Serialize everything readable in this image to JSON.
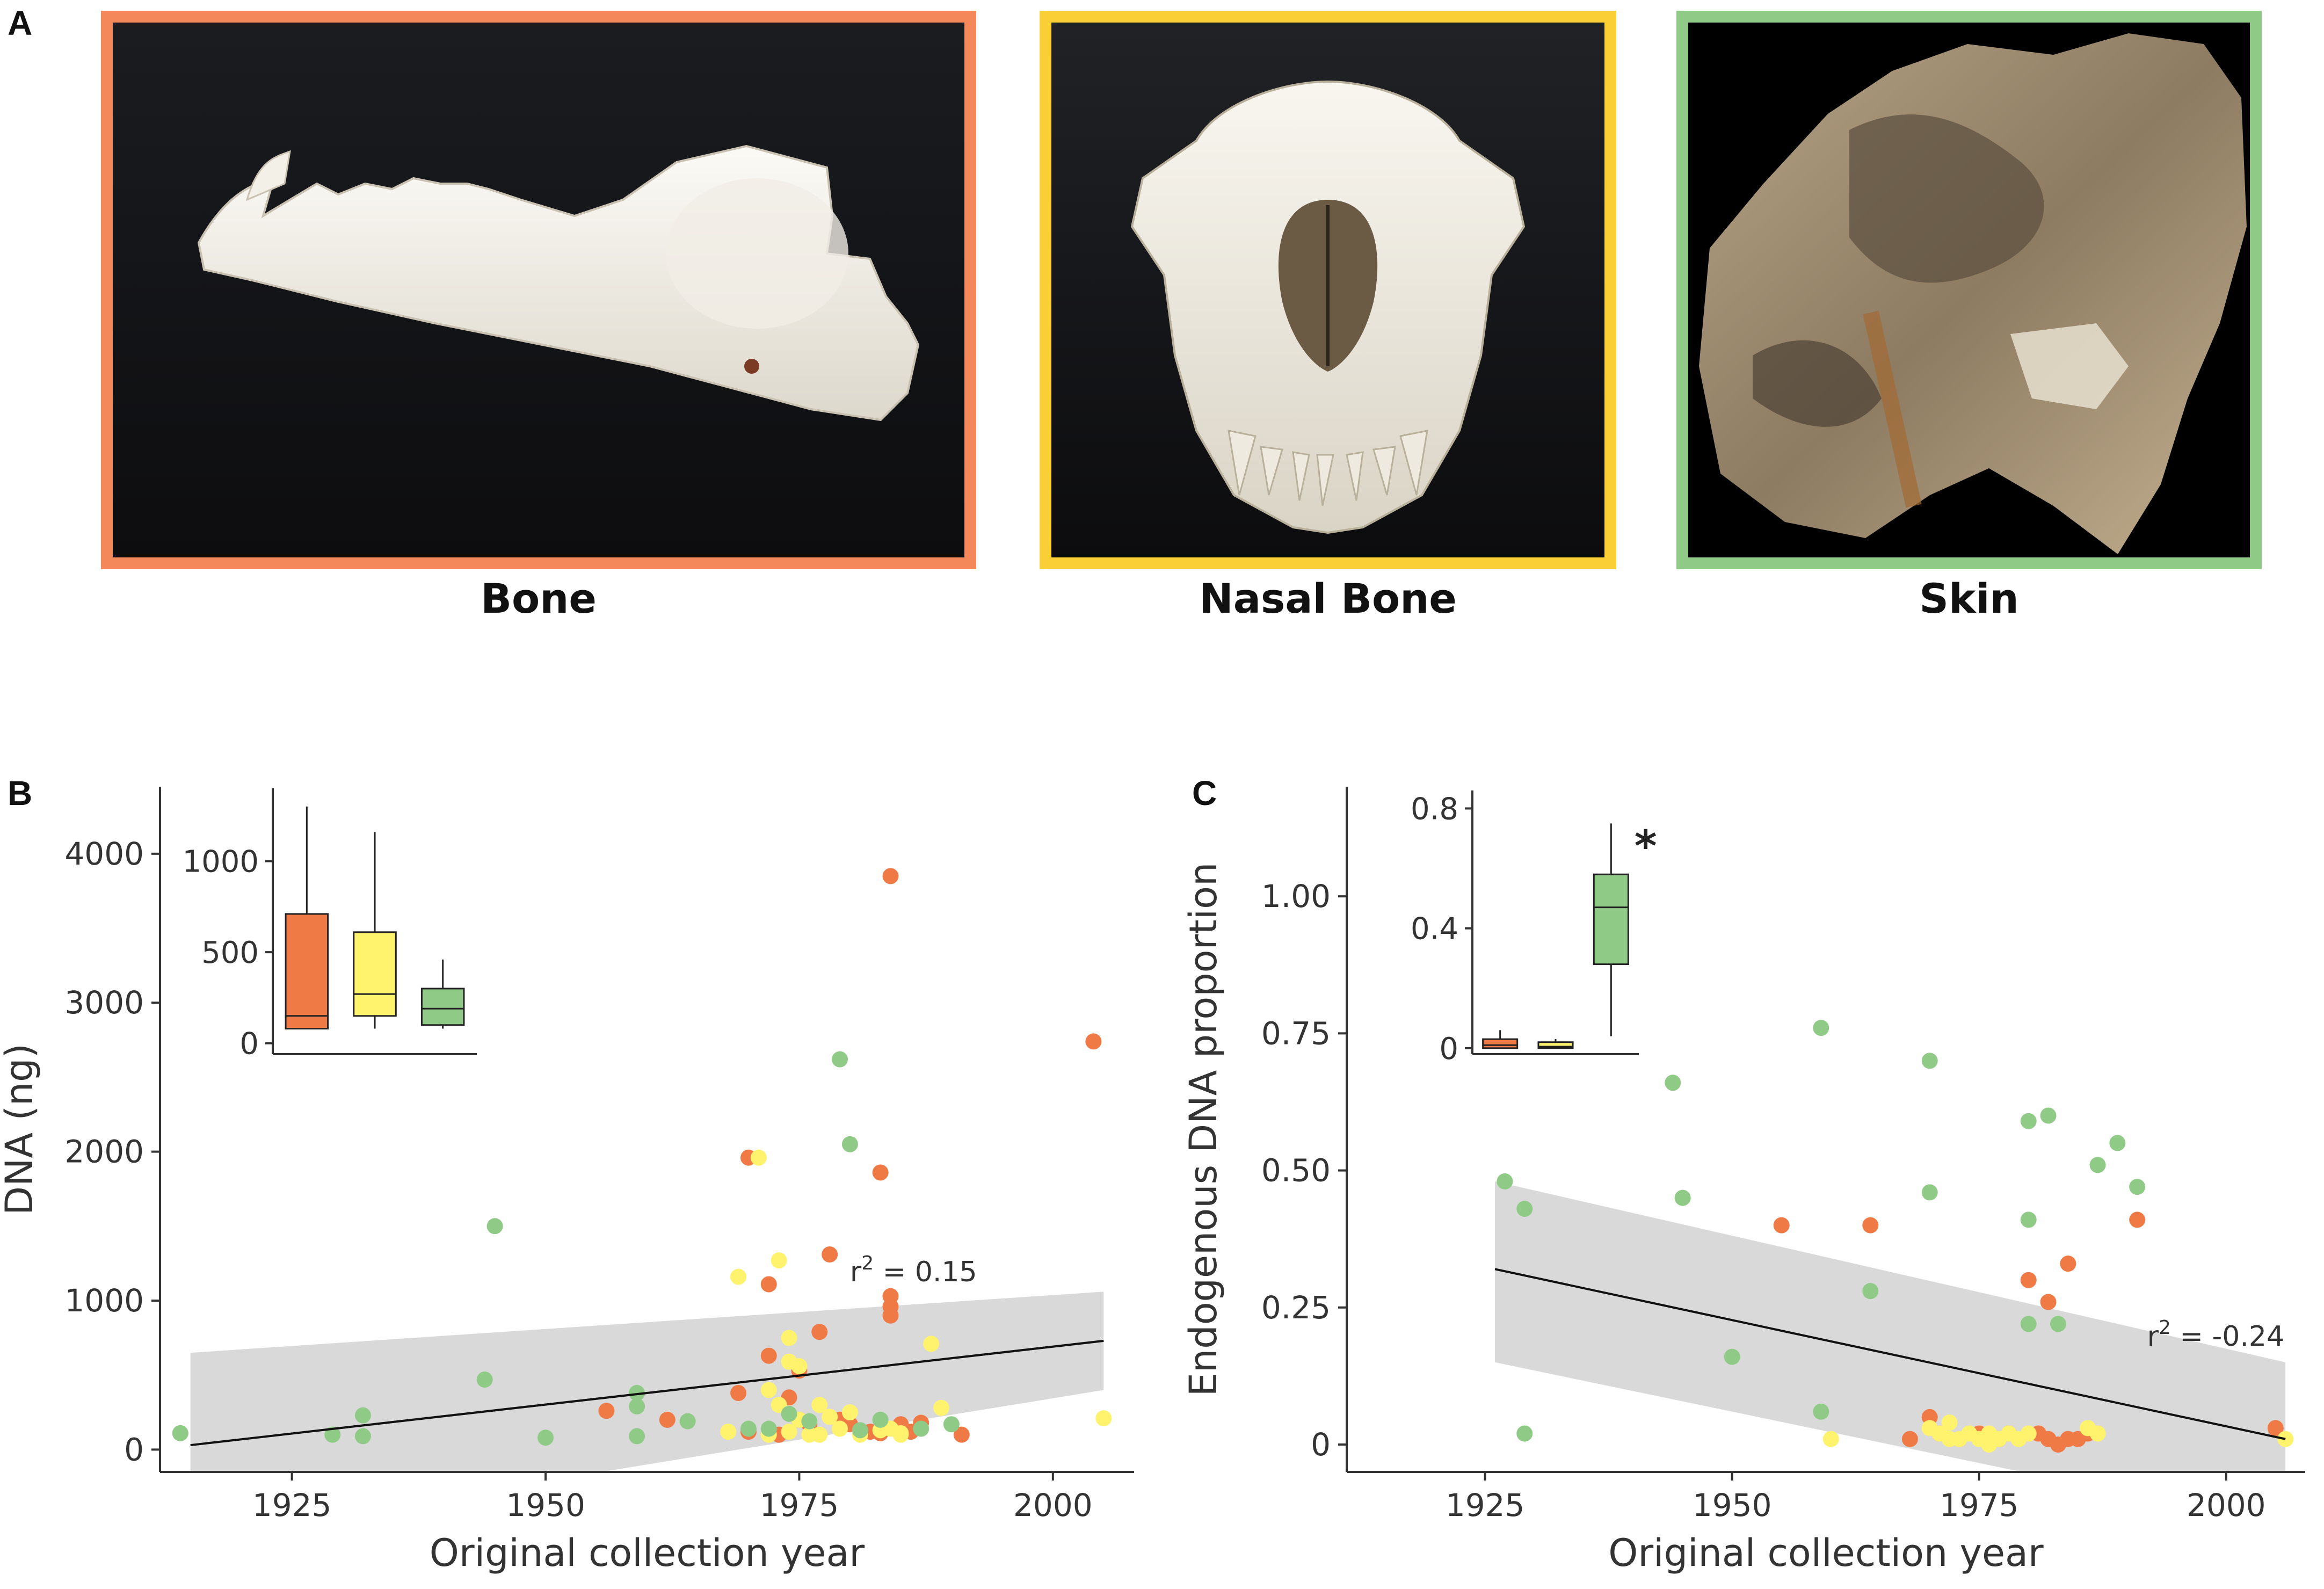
{
  "panels": {
    "a": {
      "letter": "A"
    },
    "b": {
      "letter": "B"
    },
    "c": {
      "letter": "C"
    }
  },
  "photos": [
    {
      "caption": "Bone",
      "frame_color": "#F4885A"
    },
    {
      "caption": "Nasal Bone",
      "frame_color": "#F9CF35"
    },
    {
      "caption": "Skin",
      "frame_color": "#8FCB86"
    }
  ],
  "colors": {
    "bone": "#F07A46",
    "nasal_bone": "#FFF36E",
    "skin": "#8FCB86",
    "ribbon": "#D9D9D9",
    "axis": "#333333"
  },
  "chart_data": [
    {
      "type": "scatter",
      "panel": "B",
      "title": "",
      "xlabel": "Original collection year",
      "ylabel": "DNA (ng)",
      "xlim": [
        1912,
        2008
      ],
      "ylim": [
        -150,
        4450
      ],
      "xticks": [
        1925,
        1950,
        1975,
        2000
      ],
      "yticks": [
        0,
        1000,
        2000,
        3000,
        4000
      ],
      "annotation": {
        "prefix": "r",
        "sup": "2",
        "suffix": " = 0.15",
        "x": 1980,
        "y": 1130
      },
      "fit": {
        "x": [
          1915,
          2005
        ],
        "y": [
          30,
          730
        ]
      },
      "ci": {
        "x": [
          1915,
          2005
        ],
        "lower": [
          -600,
          400
        ],
        "upper": [
          650,
          1060
        ]
      },
      "series": [
        {
          "name": "Bone",
          "points": [
            [
              1956,
              260
            ],
            [
              1962,
              200
            ],
            [
              1969,
              380
            ],
            [
              1970,
              1960
            ],
            [
              1972,
              1110
            ],
            [
              1972,
              630
            ],
            [
              1973,
              100
            ],
            [
              1974,
              350
            ],
            [
              1975,
              200
            ],
            [
              1976,
              170
            ],
            [
              1977,
              790
            ],
            [
              1978,
              1310
            ],
            [
              1979,
              200
            ],
            [
              1980,
              170
            ],
            [
              1982,
              120
            ],
            [
              1983,
              1860
            ],
            [
              1983,
              110
            ],
            [
              1984,
              1030
            ],
            [
              1984,
              960
            ],
            [
              1984,
              900
            ],
            [
              1984,
              3850
            ],
            [
              1985,
              170
            ],
            [
              1986,
              120
            ],
            [
              1987,
              180
            ],
            [
              1991,
              100
            ],
            [
              2004,
              2740
            ],
            [
              1970,
              120
            ],
            [
              1975,
              530
            ]
          ]
        },
        {
          "name": "Nasal Bone",
          "points": [
            [
              1969,
              1160
            ],
            [
              1971,
              1960
            ],
            [
              1972,
              400
            ],
            [
              1973,
              300
            ],
            [
              1973,
              1270
            ],
            [
              1974,
              750
            ],
            [
              1974,
              590
            ],
            [
              1974,
              120
            ],
            [
              1975,
              200
            ],
            [
              1975,
              560
            ],
            [
              1976,
              100
            ],
            [
              1977,
              300
            ],
            [
              1977,
              100
            ],
            [
              1978,
              220
            ],
            [
              1979,
              140
            ],
            [
              1980,
              250
            ],
            [
              1981,
              100
            ],
            [
              1983,
              130
            ],
            [
              1984,
              140
            ],
            [
              1985,
              110
            ],
            [
              1988,
              710
            ],
            [
              1989,
              280
            ],
            [
              1968,
              120
            ],
            [
              1972,
              100
            ],
            [
              1985,
              100
            ],
            [
              2005,
              210
            ]
          ]
        },
        {
          "name": "Skin",
          "points": [
            [
              1914,
              110
            ],
            [
              1929,
              100
            ],
            [
              1932,
              230
            ],
            [
              1932,
              90
            ],
            [
              1944,
              470
            ],
            [
              1945,
              1500
            ],
            [
              1950,
              80
            ],
            [
              1959,
              380
            ],
            [
              1959,
              290
            ],
            [
              1959,
              90
            ],
            [
              1964,
              190
            ],
            [
              1970,
              140
            ],
            [
              1972,
              140
            ],
            [
              1974,
              240
            ],
            [
              1976,
              190
            ],
            [
              1979,
              2620
            ],
            [
              1980,
              2050
            ],
            [
              1981,
              130
            ],
            [
              1983,
              200
            ],
            [
              1987,
              140
            ],
            [
              1990,
              170
            ]
          ]
        }
      ]
    },
    {
      "type": "box",
      "panel": "B inset",
      "ylim": [
        -60,
        1400
      ],
      "yticks": [
        0,
        500,
        1000
      ],
      "boxes": [
        {
          "name": "Bone",
          "min": 80,
          "q1": 80,
          "median": 150,
          "q3": 710,
          "max": 1300
        },
        {
          "name": "Nasal Bone",
          "min": 80,
          "q1": 150,
          "median": 270,
          "q3": 610,
          "max": 1160
        },
        {
          "name": "Skin",
          "min": 80,
          "q1": 100,
          "median": 190,
          "q3": 300,
          "max": 460
        }
      ]
    },
    {
      "type": "scatter",
      "panel": "C",
      "title": "",
      "xlabel": "Original collection year",
      "ylabel": "Endogenous DNA proportion",
      "xlim": [
        1911,
        2008
      ],
      "ylim": [
        -0.05,
        1.2
      ],
      "xticks": [
        1925,
        1950,
        1975,
        2000
      ],
      "yticks": [
        0,
        0.25,
        0.5,
        0.75,
        1.0
      ],
      "ytick_labels": [
        "0",
        "0.25",
        "0.50",
        "0.75",
        "1.00"
      ],
      "annotation": {
        "prefix": "r",
        "sup": "2",
        "suffix": " = -0.24",
        "x": 1992,
        "y": 0.18
      },
      "fit": {
        "x": [
          1926,
          2006
        ],
        "y": [
          0.32,
          0.01
        ]
      },
      "ci": {
        "x": [
          1926,
          2006
        ],
        "lower": [
          0.15,
          -0.15
        ],
        "upper": [
          0.48,
          0.15
        ]
      },
      "series": [
        {
          "name": "Bone",
          "points": [
            [
              1955,
              0.4
            ],
            [
              1964,
              0.4
            ],
            [
              1968,
              0.01
            ],
            [
              1970,
              0.05
            ],
            [
              1971,
              0.02
            ],
            [
              1973,
              0.01
            ],
            [
              1975,
              0.02
            ],
            [
              1977,
              0.01
            ],
            [
              1980,
              0.3
            ],
            [
              1981,
              0.02
            ],
            [
              1982,
              0.26
            ],
            [
              1982,
              0.01
            ],
            [
              1984,
              0.33
            ],
            [
              1984,
              0.01
            ],
            [
              1985,
              0.01
            ],
            [
              1986,
              0.02
            ],
            [
              1991,
              0.41
            ],
            [
              2005,
              0.03
            ],
            [
              1978,
              0.02
            ],
            [
              1983,
              0.0
            ]
          ]
        },
        {
          "name": "Nasal Bone",
          "points": [
            [
              1960,
              0.01
            ],
            [
              1970,
              0.03
            ],
            [
              1971,
              0.02
            ],
            [
              1972,
              0.04
            ],
            [
              1973,
              0.01
            ],
            [
              1974,
              0.02
            ],
            [
              1975,
              0.01
            ],
            [
              1976,
              0.02
            ],
            [
              1977,
              0.01
            ],
            [
              1978,
              0.02
            ],
            [
              1979,
              0.01
            ],
            [
              1986,
              0.03
            ],
            [
              1987,
              0.02
            ],
            [
              2006,
              0.01
            ],
            [
              1972,
              0.01
            ],
            [
              1976,
              0.0
            ],
            [
              1980,
              0.02
            ]
          ]
        },
        {
          "name": "Skin",
          "points": [
            [
              1927,
              0.48
            ],
            [
              1929,
              0.43
            ],
            [
              1929,
              0.02
            ],
            [
              1944,
              0.66
            ],
            [
              1945,
              0.45
            ],
            [
              1950,
              0.16
            ],
            [
              1959,
              0.76
            ],
            [
              1959,
              0.06
            ],
            [
              1964,
              0.28
            ],
            [
              1970,
              0.7
            ],
            [
              1970,
              0.46
            ],
            [
              1980,
              0.59
            ],
            [
              1980,
              0.41
            ],
            [
              1980,
              0.22
            ],
            [
              1982,
              0.6
            ],
            [
              1983,
              0.22
            ],
            [
              1987,
              0.51
            ],
            [
              1989,
              0.55
            ],
            [
              1991,
              0.47
            ]
          ]
        }
      ]
    },
    {
      "type": "box",
      "panel": "C inset",
      "ylim": [
        -0.02,
        0.86
      ],
      "yticks": [
        0,
        0.4,
        0.8
      ],
      "ytick_labels": [
        "0",
        "0.4",
        "0.8"
      ],
      "significance": "*",
      "boxes": [
        {
          "name": "Bone",
          "min": 0.0,
          "q1": 0.0,
          "median": 0.01,
          "q3": 0.03,
          "max": 0.06
        },
        {
          "name": "Nasal Bone",
          "min": 0.0,
          "q1": 0.0,
          "median": 0.005,
          "q3": 0.02,
          "max": 0.03
        },
        {
          "name": "Skin",
          "min": 0.04,
          "q1": 0.28,
          "median": 0.47,
          "q3": 0.58,
          "max": 0.75
        }
      ]
    }
  ]
}
